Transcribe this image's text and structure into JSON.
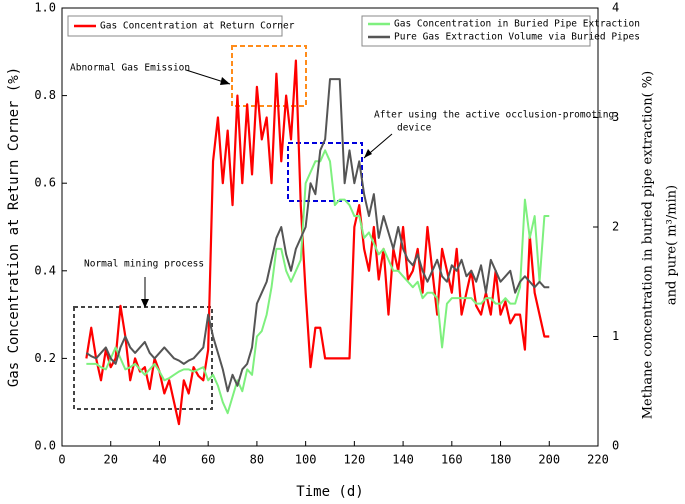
{
  "chart_data": {
    "type": "line",
    "xlabel": "Time (d)",
    "ylabel": "Gas Concentration at Return Corner (%)",
    "y2label": [
      "Methane concentration in buried pipe extraction( %)",
      "and pure( m³/min)"
    ],
    "x": [
      10,
      12,
      14,
      16,
      18,
      20,
      22,
      24,
      26,
      28,
      30,
      32,
      34,
      36,
      38,
      40,
      42,
      44,
      46,
      48,
      50,
      52,
      54,
      56,
      58,
      60,
      62,
      64,
      66,
      68,
      70,
      72,
      74,
      76,
      78,
      80,
      82,
      84,
      86,
      88,
      90,
      92,
      94,
      96,
      98,
      100,
      102,
      104,
      106,
      108,
      110,
      112,
      114,
      116,
      118,
      120,
      122,
      124,
      126,
      128,
      130,
      132,
      134,
      136,
      138,
      140,
      142,
      144,
      146,
      148,
      150,
      152,
      154,
      156,
      158,
      160,
      162,
      164,
      166,
      168,
      170,
      172,
      174,
      176,
      178,
      180,
      182,
      184,
      186,
      188,
      190,
      192,
      194,
      196,
      198,
      200
    ],
    "series": [
      {
        "name": "Gas Concentration at Return Corner",
        "color": "#ff0000",
        "axis": "y",
        "values": [
          0.2,
          0.27,
          0.2,
          0.15,
          0.22,
          0.18,
          0.2,
          0.32,
          0.25,
          0.15,
          0.2,
          0.17,
          0.18,
          0.13,
          0.2,
          0.17,
          0.12,
          0.15,
          0.1,
          0.05,
          0.15,
          0.12,
          0.18,
          0.16,
          0.15,
          0.22,
          0.65,
          0.75,
          0.6,
          0.72,
          0.55,
          0.8,
          0.6,
          0.78,
          0.62,
          0.82,
          0.7,
          0.75,
          0.6,
          0.85,
          0.65,
          0.8,
          0.7,
          0.88,
          0.55,
          0.35,
          0.18,
          0.27,
          0.27,
          0.2,
          0.2,
          0.2,
          0.2,
          0.2,
          0.2,
          0.5,
          0.55,
          0.45,
          0.4,
          0.5,
          0.38,
          0.45,
          0.3,
          0.45,
          0.4,
          0.5,
          0.38,
          0.4,
          0.45,
          0.35,
          0.5,
          0.4,
          0.3,
          0.45,
          0.4,
          0.35,
          0.45,
          0.3,
          0.35,
          0.4,
          0.32,
          0.3,
          0.35,
          0.3,
          0.4,
          0.3,
          0.33,
          0.28,
          0.3,
          0.3,
          0.22,
          0.48,
          0.35,
          0.3,
          0.25,
          0.25
        ]
      },
      {
        "name": "Gas Concentration in Buried Pipe Extraction",
        "color": "#7ef07e",
        "axis": "y2",
        "values": [
          0.75,
          0.75,
          0.75,
          0.72,
          0.7,
          0.8,
          0.9,
          0.8,
          0.7,
          0.72,
          0.75,
          0.7,
          0.65,
          0.7,
          0.75,
          0.68,
          0.6,
          0.62,
          0.65,
          0.68,
          0.7,
          0.7,
          0.68,
          0.7,
          0.72,
          0.6,
          0.65,
          0.55,
          0.4,
          0.3,
          0.45,
          0.6,
          0.5,
          0.7,
          0.65,
          1.0,
          1.05,
          1.2,
          1.45,
          1.8,
          1.8,
          1.6,
          1.5,
          1.6,
          1.7,
          2.4,
          2.5,
          2.6,
          2.6,
          2.7,
          2.6,
          2.2,
          2.25,
          2.25,
          2.2,
          2.1,
          2.1,
          1.9,
          1.95,
          1.85,
          1.75,
          1.8,
          1.7,
          1.6,
          1.6,
          1.55,
          1.5,
          1.45,
          1.5,
          1.35,
          1.4,
          1.4,
          1.35,
          0.9,
          1.3,
          1.35,
          1.35,
          1.35,
          1.35,
          1.35,
          1.3,
          1.3,
          1.35,
          1.35,
          1.3,
          1.3,
          1.35,
          1.3,
          1.3,
          1.45,
          2.25,
          1.9,
          2.1,
          1.5,
          2.1,
          2.1
        ]
      },
      {
        "name": "Pure Gas Extraction Volume via Buried Pipes",
        "color": "#555555",
        "axis": "y2",
        "values": [
          0.85,
          0.82,
          0.8,
          0.85,
          0.9,
          0.8,
          0.75,
          0.9,
          1.0,
          0.9,
          0.85,
          0.9,
          0.95,
          0.85,
          0.8,
          0.85,
          0.9,
          0.85,
          0.8,
          0.78,
          0.75,
          0.78,
          0.8,
          0.85,
          0.9,
          1.2,
          1.0,
          0.85,
          0.7,
          0.5,
          0.65,
          0.55,
          0.7,
          0.75,
          0.9,
          1.3,
          1.4,
          1.5,
          1.7,
          1.9,
          2.0,
          1.75,
          1.6,
          1.8,
          1.9,
          2.0,
          2.4,
          2.3,
          2.7,
          2.8,
          3.35,
          3.35,
          3.35,
          2.4,
          2.7,
          2.4,
          2.6,
          2.3,
          2.1,
          2.3,
          1.9,
          2.1,
          1.95,
          1.8,
          2.0,
          1.8,
          1.7,
          1.65,
          1.75,
          1.6,
          1.5,
          1.6,
          1.7,
          1.55,
          1.5,
          1.65,
          1.6,
          1.7,
          1.55,
          1.6,
          1.5,
          1.65,
          1.4,
          1.7,
          1.6,
          1.5,
          1.55,
          1.6,
          1.4,
          1.5,
          1.55,
          1.5,
          1.45,
          1.5,
          1.45,
          1.45
        ]
      }
    ],
    "xlim": [
      0,
      220
    ],
    "xticks": [
      0,
      20,
      40,
      60,
      80,
      100,
      120,
      140,
      160,
      180,
      200,
      220
    ],
    "ylim": [
      0,
      1
    ],
    "yticks": [
      {
        "value": 0,
        "label": "0.0"
      },
      0.2,
      0.4,
      0.6,
      0.8,
      {
        "value": 1,
        "label": "1.0"
      }
    ],
    "y2lim": [
      0,
      4
    ],
    "y2ticks": [
      0,
      1,
      2,
      3,
      4
    ],
    "annotations": [
      "Abnormal Gas Emission",
      "After using the active occlusion-promoting",
      "device",
      "Normal mining process"
    ]
  }
}
